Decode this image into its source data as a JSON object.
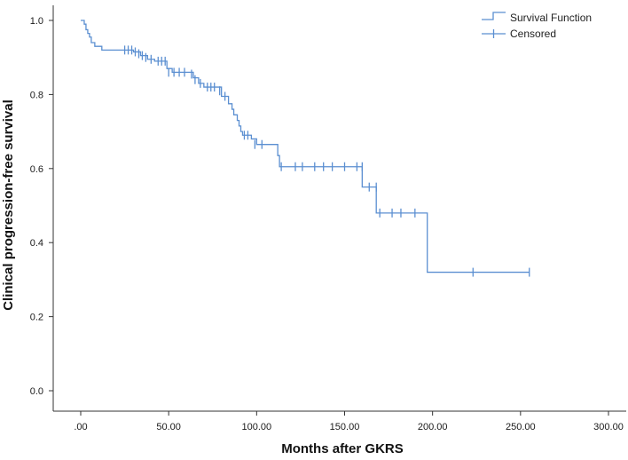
{
  "chart_data": {
    "type": "line",
    "xlabel": "Months after GKRS",
    "ylabel": "Clinical progression-free survival",
    "x_ticks": [
      ".00",
      "50.00",
      "100.00",
      "150.00",
      "200.00",
      "250.00",
      "300.00"
    ],
    "y_ticks": [
      "0.0",
      "0.2",
      "0.4",
      "0.6",
      "0.8",
      "1.0"
    ],
    "xlim": [
      0,
      300
    ],
    "ylim": [
      0,
      1.0
    ],
    "grid": false,
    "legend_position": "top-right",
    "legend": [
      "Survival Function",
      "Censored"
    ],
    "series_color": "#5b8fd1",
    "survival_steps": [
      [
        0,
        1.0
      ],
      [
        2,
        0.99
      ],
      [
        3,
        0.975
      ],
      [
        4,
        0.965
      ],
      [
        5,
        0.955
      ],
      [
        6,
        0.94
      ],
      [
        8,
        0.93
      ],
      [
        12,
        0.92
      ],
      [
        30,
        0.915
      ],
      [
        34,
        0.905
      ],
      [
        38,
        0.895
      ],
      [
        42,
        0.89
      ],
      [
        49,
        0.87
      ],
      [
        52,
        0.86
      ],
      [
        64,
        0.845
      ],
      [
        67,
        0.83
      ],
      [
        70,
        0.82
      ],
      [
        80,
        0.795
      ],
      [
        84,
        0.775
      ],
      [
        86,
        0.76
      ],
      [
        87,
        0.745
      ],
      [
        89,
        0.73
      ],
      [
        90,
        0.715
      ],
      [
        91,
        0.7
      ],
      [
        92,
        0.69
      ],
      [
        97,
        0.68
      ],
      [
        100,
        0.665
      ],
      [
        112,
        0.635
      ],
      [
        113,
        0.605
      ],
      [
        160,
        0.55
      ],
      [
        168,
        0.48
      ],
      [
        197,
        0.32
      ],
      [
        255,
        0.32
      ]
    ],
    "censored": [
      [
        25,
        0.92
      ],
      [
        27,
        0.92
      ],
      [
        29,
        0.92
      ],
      [
        31,
        0.915
      ],
      [
        33,
        0.91
      ],
      [
        35,
        0.905
      ],
      [
        37,
        0.9
      ],
      [
        40,
        0.895
      ],
      [
        44,
        0.89
      ],
      [
        46,
        0.89
      ],
      [
        48,
        0.89
      ],
      [
        50,
        0.86
      ],
      [
        53,
        0.86
      ],
      [
        56,
        0.86
      ],
      [
        59,
        0.86
      ],
      [
        63,
        0.855
      ],
      [
        65,
        0.84
      ],
      [
        68,
        0.83
      ],
      [
        72,
        0.82
      ],
      [
        74,
        0.82
      ],
      [
        76,
        0.82
      ],
      [
        79,
        0.81
      ],
      [
        82,
        0.795
      ],
      [
        93,
        0.69
      ],
      [
        95,
        0.69
      ],
      [
        99,
        0.665
      ],
      [
        103,
        0.665
      ],
      [
        114,
        0.605
      ],
      [
        122,
        0.605
      ],
      [
        126,
        0.605
      ],
      [
        133,
        0.605
      ],
      [
        138,
        0.605
      ],
      [
        143,
        0.605
      ],
      [
        150,
        0.605
      ],
      [
        157,
        0.605
      ],
      [
        160,
        0.605
      ],
      [
        164,
        0.55
      ],
      [
        168,
        0.55
      ],
      [
        170,
        0.48
      ],
      [
        177,
        0.48
      ],
      [
        182,
        0.48
      ],
      [
        190,
        0.48
      ],
      [
        223,
        0.32
      ],
      [
        255,
        0.32
      ]
    ]
  }
}
